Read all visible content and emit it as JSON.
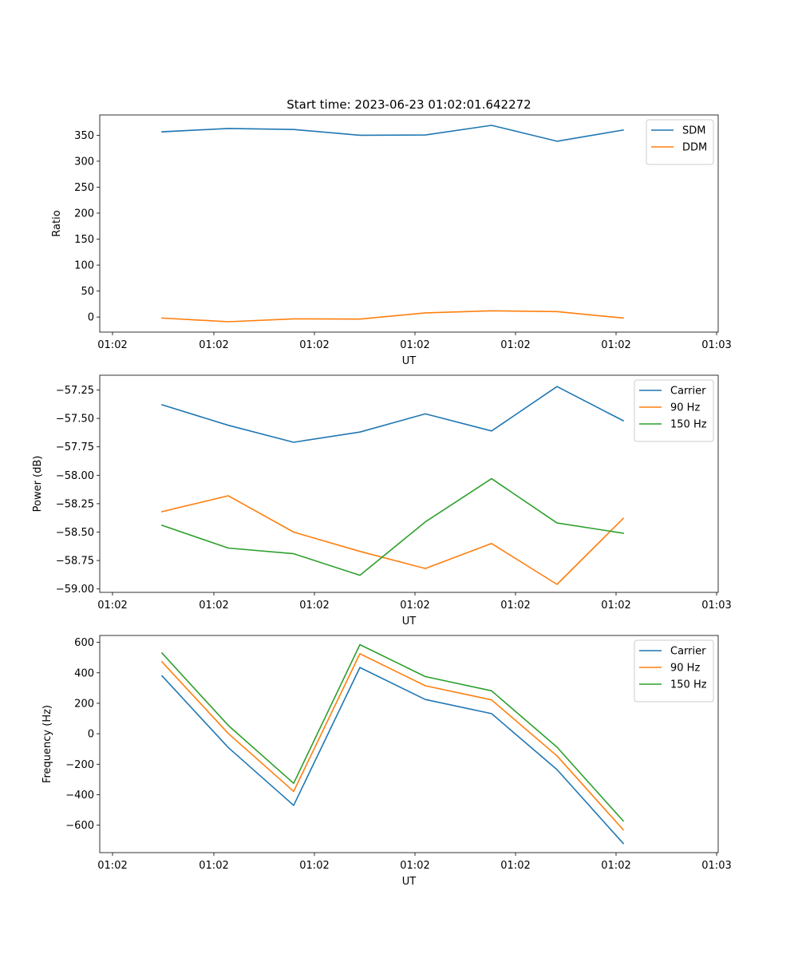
{
  "chart_data": [
    {
      "type": "line",
      "title": "Start time: 2023-06-23 01:02:01.642272",
      "xlabel": "UT",
      "ylabel": "Ratio",
      "x_tick_labels": [
        "01:02",
        "01:02",
        "01:02",
        "01:02",
        "01:02",
        "01:03"
      ],
      "y_ticks": [
        0,
        50,
        100,
        150,
        200,
        250,
        300,
        350
      ],
      "ylim": [
        -29,
        389
      ],
      "series": [
        {
          "name": "SDM",
          "color": "#1f77b4",
          "values": [
            356.5,
            363,
            361,
            350,
            350.5,
            369,
            338.5,
            360
          ]
        },
        {
          "name": "DDM",
          "color": "#ff7f0e",
          "values": [
            -2,
            -9,
            -3.5,
            -4,
            8,
            12,
            10.5,
            -2
          ]
        }
      ],
      "legend": "top-right",
      "grid": false
    },
    {
      "type": "line",
      "title": "",
      "xlabel": "UT",
      "ylabel": "Power (dB)",
      "x_tick_labels": [
        "01:02",
        "01:02",
        "01:02",
        "01:02",
        "01:02",
        "01:03"
      ],
      "y_ticks": [
        -59.0,
        -58.75,
        -58.5,
        -58.25,
        -58.0,
        -57.75,
        -57.5,
        -57.25
      ],
      "y_tick_labels": [
        "−59.00",
        "−58.75",
        "−58.50",
        "−58.25",
        "−58.00",
        "−57.75",
        "−57.50",
        "−57.25"
      ],
      "ylim": [
        -59.03,
        -57.12
      ],
      "series": [
        {
          "name": "Carrier",
          "color": "#1f77b4",
          "values": [
            -57.38,
            -57.56,
            -57.71,
            -57.62,
            -57.46,
            -57.61,
            -57.22,
            -57.52
          ]
        },
        {
          "name": "90 Hz",
          "color": "#ff7f0e",
          "values": [
            -58.32,
            -58.18,
            -58.5,
            -58.67,
            -58.82,
            -58.6,
            -58.96,
            -58.38
          ]
        },
        {
          "name": "150 Hz",
          "color": "#2ca02c",
          "values": [
            -58.44,
            -58.64,
            -58.69,
            -58.88,
            -58.41,
            -58.03,
            -58.42,
            -58.51
          ]
        }
      ],
      "legend": "top-right",
      "grid": false
    },
    {
      "type": "line",
      "title": "",
      "xlabel": "UT",
      "ylabel": "Frequency (Hz)",
      "x_tick_labels": [
        "01:02",
        "01:02",
        "01:02",
        "01:02",
        "01:02",
        "01:03"
      ],
      "y_ticks": [
        -600,
        -400,
        -200,
        0,
        200,
        400,
        600
      ],
      "y_tick_labels": [
        "−600",
        "−400",
        "−200",
        "0",
        "200",
        "400",
        "600"
      ],
      "ylim": [
        -780,
        645
      ],
      "series": [
        {
          "name": "Carrier",
          "color": "#1f77b4",
          "values": [
            380,
            -90,
            -470,
            435,
            225,
            132,
            -235,
            -720
          ]
        },
        {
          "name": "90 Hz",
          "color": "#ff7f0e",
          "values": [
            472,
            2,
            -378,
            525,
            315,
            222,
            -145,
            -630
          ]
        },
        {
          "name": "150 Hz",
          "color": "#2ca02c",
          "values": [
            530,
            55,
            -325,
            585,
            375,
            282,
            -88,
            -572
          ]
        }
      ],
      "legend": "top-right",
      "grid": false
    }
  ]
}
